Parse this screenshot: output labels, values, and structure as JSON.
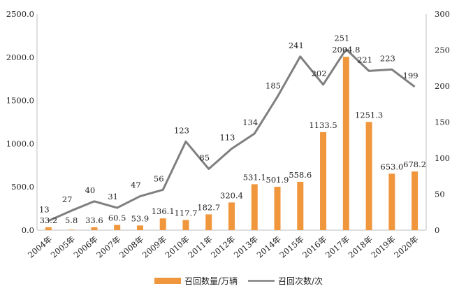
{
  "chart_data": {
    "type": "bar+line",
    "categories": [
      "2004年",
      "2005年",
      "2006年",
      "2007年",
      "2008年",
      "2009年",
      "2010年",
      "2011年",
      "2012年",
      "2013年",
      "2014年",
      "2015年",
      "2016年",
      "2017年",
      "2018年",
      "2019年",
      "2020年"
    ],
    "series": [
      {
        "name": "召回数量/万辆",
        "type": "bar",
        "axis": "left",
        "color": "#f0963c",
        "values": [
          33.2,
          5.8,
          33.6,
          60.5,
          53.9,
          136.1,
          117.7,
          182.7,
          320.4,
          531.1,
          501.9,
          558.6,
          1133.5,
          2004.8,
          1251.3,
          653.0,
          678.2
        ],
        "labels": [
          "33.2",
          "5.8",
          "33.6",
          "60.5",
          "53.9",
          "136.1",
          "117.7",
          "182.7",
          "320.4",
          "531.1",
          "501.9",
          "558.6",
          "1133.5",
          "2004.8",
          "1251.3",
          "653.0",
          "678.2"
        ]
      },
      {
        "name": "召回次数/次",
        "type": "line",
        "axis": "right",
        "color": "#7f7f7f",
        "values": [
          13,
          27,
          40,
          31,
          47,
          56,
          123,
          85,
          113,
          134,
          185,
          241,
          202,
          251,
          221,
          223,
          199
        ],
        "labels": [
          "13",
          "27",
          "40",
          "31",
          "47",
          "56",
          "123",
          "85",
          "113",
          "134",
          "185",
          "241",
          "202",
          "251",
          "221",
          "223",
          "199"
        ]
      }
    ],
    "y_left": {
      "min": 0,
      "max": 2500,
      "ticks": [
        "0.0",
        "500.0",
        "1000.0",
        "1500.0",
        "2000.0",
        "2500.0"
      ],
      "tick_values": [
        0,
        500,
        1000,
        1500,
        2000,
        2500
      ]
    },
    "y_right": {
      "min": 0,
      "max": 300,
      "ticks": [
        "0",
        "50",
        "100",
        "150",
        "200",
        "250",
        "300"
      ],
      "tick_values": [
        0,
        50,
        100,
        150,
        200,
        250,
        300
      ]
    },
    "legend_position": "bottom",
    "grid": false
  }
}
